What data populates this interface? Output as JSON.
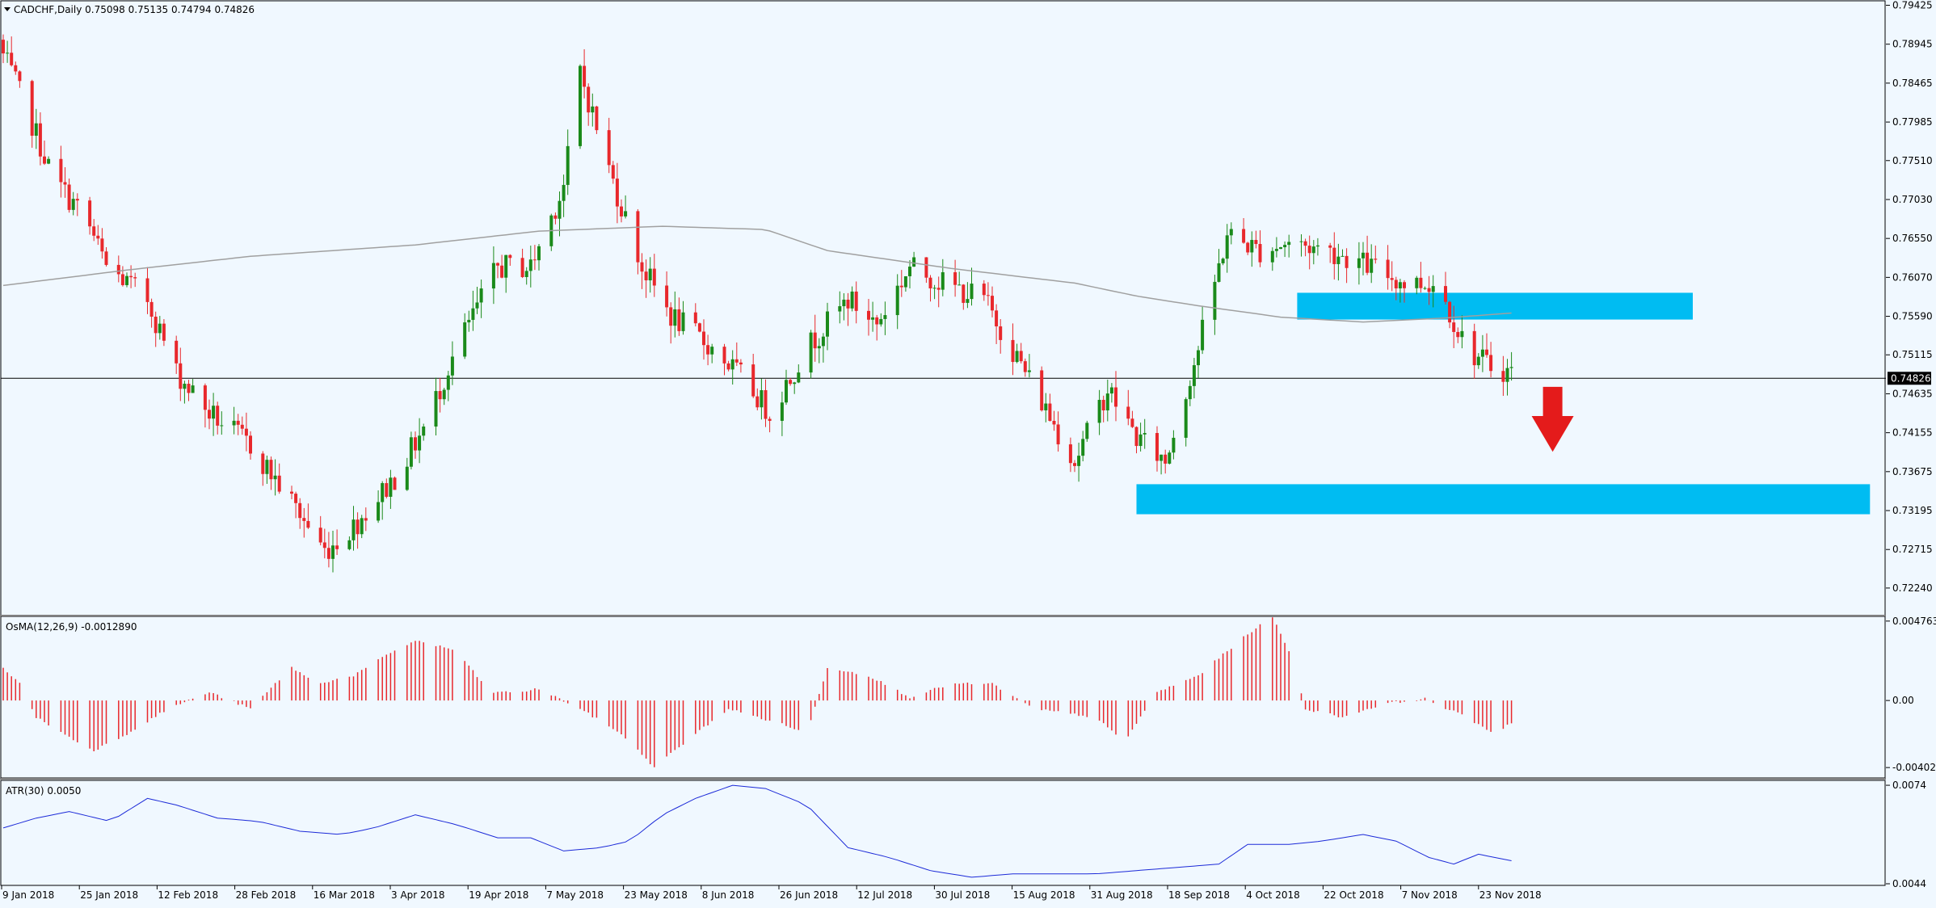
{
  "header": {
    "symbol_line": "CADCHF,Daily  0.75098 0.75135 0.74794 0.74826"
  },
  "colors": {
    "background": "#f0f8ff",
    "bull": "#1a8a1a",
    "bear": "#e8282c",
    "moving_average": "#a0a0a0",
    "zone": "#00bcf2",
    "arrow": "#e41b1b",
    "atr_line": "#1c2ad8",
    "osma_bar": "#e8282c"
  },
  "chart_data": [
    {
      "type": "candlestick",
      "name_label": "CADCHF,Daily",
      "ohlc_label": "0.75098 0.75135 0.74794 0.74826",
      "ylim": [
        0.7202,
        0.7943
      ],
      "price_ticks": [
        "0.79425",
        "0.78945",
        "0.78465",
        "0.77985",
        "0.77510",
        "0.77030",
        "0.76550",
        "0.76070",
        "0.75590",
        "0.75115",
        "0.74635",
        "0.74155",
        "0.73675",
        "0.73195",
        "0.72715",
        "0.72240"
      ],
      "current_price": "0.74826",
      "date_ticks": [
        "9 Jan 2018",
        "25 Jan 2018",
        "12 Feb 2018",
        "28 Feb 2018",
        "16 Mar 2018",
        "3 Apr 2018",
        "19 Apr 2018",
        "7 May 2018",
        "23 May 2018",
        "8 Jun 2018",
        "26 Jun 2018",
        "12 Jul 2018",
        "30 Jul 2018",
        "15 Aug 2018",
        "31 Aug 2018",
        "18 Sep 2018",
        "4 Oct 2018",
        "22 Oct 2018",
        "7 Nov 2018",
        "23 Nov 2018"
      ],
      "close_path": [
        [
          0,
          0.788
        ],
        [
          6,
          0.781
        ],
        [
          12,
          0.773
        ],
        [
          20,
          0.768
        ],
        [
          25,
          0.762
        ],
        [
          35,
          0.758
        ],
        [
          42,
          0.749
        ],
        [
          50,
          0.744
        ],
        [
          60,
          0.74
        ],
        [
          70,
          0.733
        ],
        [
          78,
          0.727
        ],
        [
          85,
          0.73
        ],
        [
          95,
          0.736
        ],
        [
          102,
          0.742
        ],
        [
          110,
          0.752
        ],
        [
          120,
          0.762
        ],
        [
          128,
          0.762
        ],
        [
          136,
          0.772
        ],
        [
          140,
          0.786
        ],
        [
          147,
          0.774
        ],
        [
          155,
          0.762
        ],
        [
          162,
          0.756
        ],
        [
          172,
          0.752
        ],
        [
          180,
          0.748
        ],
        [
          186,
          0.744
        ],
        [
          195,
          0.752
        ],
        [
          205,
          0.758
        ],
        [
          212,
          0.755
        ],
        [
          220,
          0.762
        ],
        [
          228,
          0.76
        ],
        [
          238,
          0.758
        ],
        [
          247,
          0.75
        ],
        [
          260,
          0.738
        ],
        [
          268,
          0.747
        ],
        [
          275,
          0.741
        ],
        [
          282,
          0.738
        ],
        [
          290,
          0.752
        ],
        [
          297,
          0.766
        ],
        [
          305,
          0.764
        ],
        [
          312,
          0.765
        ],
        [
          322,
          0.764
        ],
        [
          332,
          0.762
        ],
        [
          340,
          0.76
        ],
        [
          348,
          0.76
        ],
        [
          355,
          0.752
        ],
        [
          360,
          0.75
        ],
        [
          366,
          0.749
        ]
      ],
      "moving_average_path": [
        [
          0,
          0.7597
        ],
        [
          30,
          0.7616
        ],
        [
          60,
          0.7633
        ],
        [
          100,
          0.7647
        ],
        [
          130,
          0.7664
        ],
        [
          160,
          0.767
        ],
        [
          185,
          0.7666
        ],
        [
          200,
          0.764
        ],
        [
          230,
          0.7618
        ],
        [
          260,
          0.76
        ],
        [
          275,
          0.7584
        ],
        [
          290,
          0.7572
        ],
        [
          310,
          0.7558
        ],
        [
          330,
          0.7552
        ],
        [
          350,
          0.7557
        ],
        [
          366,
          0.7563
        ]
      ],
      "zones": [
        {
          "x_start": 314,
          "x_end": 410,
          "y_low": 0.7555,
          "y_high": 0.7588
        },
        {
          "x_start": 275,
          "x_end": 453,
          "y_low": 0.7315,
          "y_high": 0.7352
        }
      ],
      "arrow": {
        "x": 376,
        "y_top": 0.7472,
        "y_bottom": 0.7392,
        "direction": "down"
      }
    },
    {
      "type": "bar",
      "name": "OsMA(12,26,9)",
      "label": "OsMA(12,26,9) -0.0012890",
      "ylim": [
        -0.0045,
        0.0049
      ],
      "ticks": [
        "0.004763",
        "0.00",
        "-0.004022"
      ],
      "tick_values": [
        0.004763,
        0,
        -0.004022
      ],
      "path": [
        [
          0,
          0.002
        ],
        [
          4,
          0.001
        ],
        [
          8,
          -0.001
        ],
        [
          18,
          -0.0025
        ],
        [
          22,
          -0.003
        ],
        [
          30,
          -0.002
        ],
        [
          40,
          -0.0005
        ],
        [
          50,
          0.0005
        ],
        [
          60,
          -0.0005
        ],
        [
          70,
          0.002
        ],
        [
          76,
          0.001
        ],
        [
          85,
          0.0015
        ],
        [
          95,
          0.003
        ],
        [
          100,
          0.0036
        ],
        [
          110,
          0.003
        ],
        [
          118,
          0.0005
        ],
        [
          125,
          0.0005
        ],
        [
          130,
          0.0007
        ],
        [
          140,
          -0.0005
        ],
        [
          150,
          -0.002
        ],
        [
          158,
          -0.004
        ],
        [
          168,
          -0.002
        ],
        [
          176,
          -0.0005
        ],
        [
          190,
          -0.0015
        ],
        [
          195,
          -0.002
        ],
        [
          200,
          0.002
        ],
        [
          210,
          0.0015
        ],
        [
          220,
          0.0002
        ],
        [
          230,
          0.001
        ],
        [
          240,
          0.001
        ],
        [
          250,
          -0.0005
        ],
        [
          265,
          -0.001
        ],
        [
          272,
          -0.0025
        ],
        [
          280,
          0.0005
        ],
        [
          290,
          0.0015
        ],
        [
          302,
          0.004
        ],
        [
          308,
          0.005
        ],
        [
          312,
          0.003
        ],
        [
          316,
          -0.0005
        ],
        [
          325,
          -0.001
        ],
        [
          335,
          -0.0002
        ],
        [
          345,
          0.0001
        ],
        [
          355,
          -0.001
        ],
        [
          362,
          -0.002
        ],
        [
          366,
          -0.0013
        ]
      ]
    },
    {
      "type": "line",
      "name": "ATR(30)",
      "label": "ATR(30) 0.0050",
      "ylim": [
        0.0044,
        0.0075
      ],
      "ticks": [
        "0.0074",
        "0.0044"
      ],
      "tick_values": [
        0.0074,
        0.0044
      ],
      "path": [
        [
          0,
          0.0061
        ],
        [
          8,
          0.0064
        ],
        [
          16,
          0.0066
        ],
        [
          26,
          0.0063
        ],
        [
          35,
          0.007
        ],
        [
          42,
          0.0068
        ],
        [
          52,
          0.0064
        ],
        [
          62,
          0.0063
        ],
        [
          72,
          0.006
        ],
        [
          82,
          0.0059
        ],
        [
          90,
          0.0061
        ],
        [
          100,
          0.0065
        ],
        [
          110,
          0.0062
        ],
        [
          120,
          0.0058
        ],
        [
          128,
          0.0058
        ],
        [
          136,
          0.0054
        ],
        [
          145,
          0.0055
        ],
        [
          152,
          0.0057
        ],
        [
          160,
          0.0065
        ],
        [
          168,
          0.007
        ],
        [
          177,
          0.0074
        ],
        [
          185,
          0.0073
        ],
        [
          195,
          0.0068
        ],
        [
          205,
          0.0055
        ],
        [
          215,
          0.0052
        ],
        [
          225,
          0.0048
        ],
        [
          235,
          0.0046
        ],
        [
          245,
          0.0047
        ],
        [
          255,
          0.0047
        ],
        [
          265,
          0.0047
        ],
        [
          275,
          0.0048
        ],
        [
          285,
          0.0049
        ],
        [
          295,
          0.005
        ],
        [
          302,
          0.0056
        ],
        [
          312,
          0.0056
        ],
        [
          320,
          0.0057
        ],
        [
          330,
          0.0059
        ],
        [
          338,
          0.0057
        ],
        [
          346,
          0.0052
        ],
        [
          352,
          0.005
        ],
        [
          358,
          0.0053
        ],
        [
          366,
          0.0051
        ]
      ]
    }
  ]
}
